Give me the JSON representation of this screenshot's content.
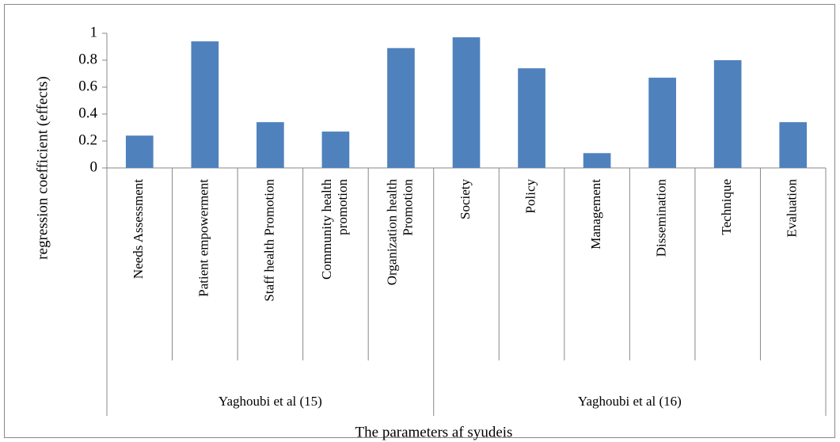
{
  "chart_data": {
    "type": "bar",
    "ylabel": "regression coefficient (effects)",
    "xlabel": "The parameters af syudeis",
    "groups": [
      {
        "name": "Yaghoubi et al (15)",
        "categories": [
          "Needs Assessment",
          "Patient empowerment",
          "Staff health Promotion",
          "Community health promotion",
          "Organization health Promotion"
        ],
        "values": [
          0.24,
          0.94,
          0.34,
          0.27,
          0.89
        ]
      },
      {
        "name": "Yaghoubi et al (16)",
        "categories": [
          "Society",
          "Policy",
          "Management",
          "Dissemination",
          "Technique",
          "Evaluation"
        ],
        "values": [
          0.97,
          0.74,
          0.11,
          0.67,
          0.8,
          0.34
        ]
      }
    ],
    "color": "#4f81bd",
    "ylim": [
      0,
      1
    ],
    "yticks": [
      0,
      0.2,
      0.4,
      0.6,
      0.8,
      1
    ],
    "grid": false
  }
}
